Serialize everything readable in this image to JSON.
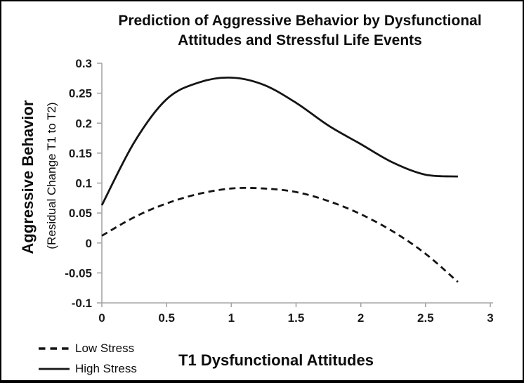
{
  "header": {
    "title_line1": "Prediction of Aggressive Behavior by Dysfunctional",
    "title_line2": "Attitudes and Stressful Life Events"
  },
  "colors": {
    "curve": "#151515",
    "axis": "#a6a6a6",
    "tick_text": "#1a1a1a",
    "background": "#ffffff",
    "border": "#000000"
  },
  "chart_data": {
    "type": "line",
    "title": "Prediction of Aggressive Behavior by Dysfunctional Attitudes and Stressful Life Events",
    "xlabel": "T1 Dysfunctional Attitudes",
    "ylabel": "Aggressive Behavior",
    "ylabel_sub": "(Residual Change T1 to T2)",
    "xlim": [
      0,
      3
    ],
    "ylim": [
      -0.1,
      0.3
    ],
    "grid": false,
    "legend_position": "bottom-left",
    "x_tick_values": [
      0,
      0.5,
      1,
      1.5,
      2,
      2.5,
      3
    ],
    "x_tick_labels": [
      "0",
      "0.5",
      "1",
      "1.5",
      "2",
      "2.5",
      "3"
    ],
    "y_tick_values": [
      0.3,
      0.25,
      0.2,
      0.15,
      0.1,
      0.05,
      0,
      -0.05,
      -0.1
    ],
    "y_tick_labels": [
      "0.3",
      "0.25",
      "0.2",
      "0.15",
      "0.1",
      "0.05",
      "0",
      "-0.05",
      "-0.1"
    ],
    "series": [
      {
        "name": "Low Stress",
        "style": "dashed",
        "x": [
          0,
          0.25,
          0.5,
          0.75,
          1,
          1.25,
          1.5,
          1.75,
          2,
          2.25,
          2.5,
          2.75
        ],
        "y": [
          0.012,
          0.043,
          0.066,
          0.082,
          0.091,
          0.091,
          0.085,
          0.07,
          0.048,
          0.019,
          -0.018,
          -0.065
        ]
      },
      {
        "name": "High Stress",
        "style": "solid",
        "x": [
          0,
          0.25,
          0.5,
          0.75,
          1,
          1.25,
          1.5,
          1.75,
          2,
          2.25,
          2.5,
          2.75
        ],
        "y": [
          0.063,
          0.168,
          0.24,
          0.268,
          0.276,
          0.264,
          0.234,
          0.196,
          0.165,
          0.134,
          0.114,
          0.111
        ]
      }
    ]
  }
}
